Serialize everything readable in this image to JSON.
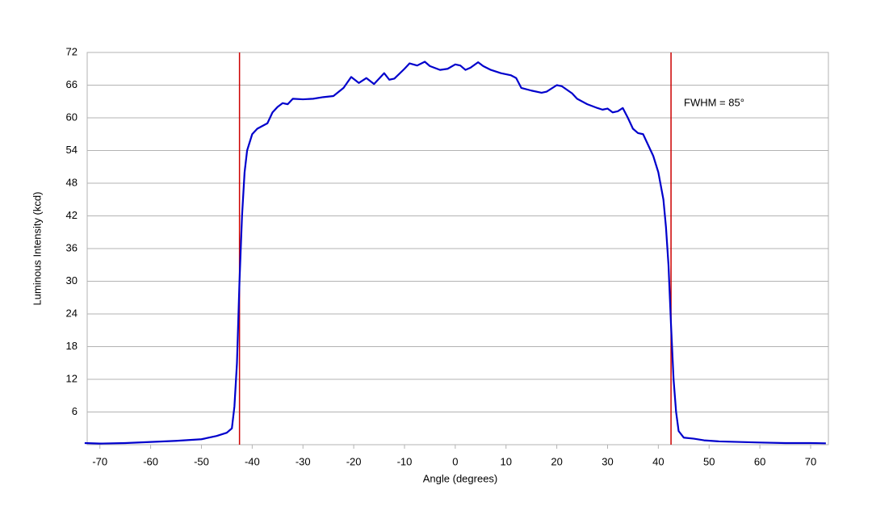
{
  "chart_data": {
    "type": "line",
    "xlabel": "Angle (degrees)",
    "ylabel": "Luminous Intensity (kcd)",
    "annotation": "FWHM = 85°",
    "x": [
      -73,
      -70,
      -65,
      -60,
      -55,
      -50,
      -47,
      -45,
      -44,
      -43.5,
      -43,
      -42.5,
      -42,
      -41.5,
      -41,
      -40,
      -39,
      -38,
      -37,
      -36,
      -35,
      -34,
      -33,
      -32,
      -30,
      -28,
      -26,
      -24,
      -22,
      -20.5,
      -19,
      -17.5,
      -16,
      -14,
      -13,
      -12,
      -10,
      -9,
      -7.5,
      -6,
      -5,
      -3,
      -1.5,
      0,
      1,
      2,
      3,
      4.5,
      5.5,
      7,
      9,
      11,
      12,
      13,
      15,
      17,
      18,
      20,
      21,
      23,
      24,
      26,
      28,
      29,
      30,
      31,
      32,
      33,
      34,
      35,
      36,
      37,
      38,
      39,
      40,
      41,
      41.5,
      42,
      42.5,
      43,
      43.5,
      44,
      45,
      47,
      49,
      52,
      60,
      65,
      70,
      73
    ],
    "values": [
      0.3,
      0.2,
      0.3,
      0.5,
      0.7,
      1.0,
      1.6,
      2.2,
      3,
      7,
      15,
      30,
      42,
      50,
      54,
      57,
      58,
      58.5,
      59,
      61,
      62,
      62.7,
      62.5,
      63.5,
      63.4,
      63.5,
      63.8,
      64,
      65.5,
      67.5,
      66.4,
      67.3,
      66.2,
      68.2,
      67,
      67.2,
      69,
      70,
      69.6,
      70.3,
      69.5,
      68.8,
      69,
      69.8,
      69.6,
      68.8,
      69.2,
      70.2,
      69.5,
      68.8,
      68.2,
      67.8,
      67.3,
      65.5,
      65,
      64.6,
      64.8,
      66,
      65.8,
      64.5,
      63.5,
      62.5,
      61.8,
      61.5,
      61.7,
      61,
      61.2,
      61.8,
      60,
      58,
      57.2,
      57,
      55,
      53,
      50,
      45,
      40,
      33,
      22,
      12,
      6,
      2.5,
      1.3,
      1.1,
      0.8,
      0.6,
      0.4,
      0.3,
      0.3,
      0.25
    ],
    "color": "#0000cc",
    "vlines": [
      -42.5,
      42.5
    ],
    "vline_color": "#cc0000",
    "xlim": [
      -72.5,
      73.5
    ],
    "xticks": [
      -70,
      -60,
      -50,
      -40,
      -30,
      -20,
      -10,
      0,
      10,
      20,
      30,
      40,
      50,
      60,
      70
    ],
    "ylim": [
      0,
      72
    ],
    "yticks": [
      6,
      12,
      18,
      24,
      30,
      36,
      42,
      48,
      54,
      60,
      66,
      72
    ],
    "grid": true
  }
}
